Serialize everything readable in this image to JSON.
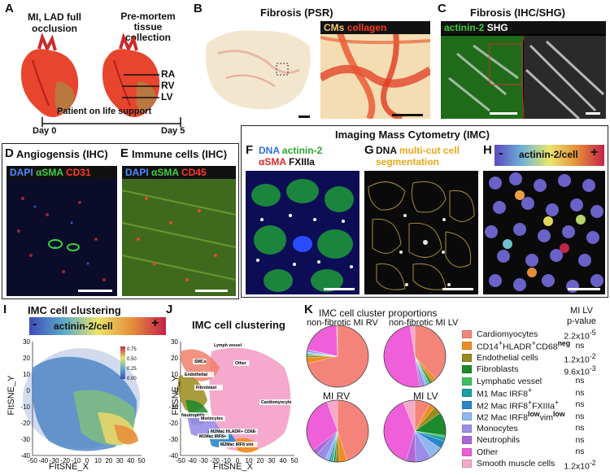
{
  "panels": {
    "A": {
      "letter": "A",
      "label1": "MI, LAD full",
      "label2": "occlusion",
      "label3": "Pre-mortem",
      "label4": "tissue",
      "label5": "collection",
      "ra": "RA",
      "rv": "RV",
      "lv": "LV",
      "support": "Patient on life support",
      "day0": "Day 0",
      "day5": "Day 5"
    },
    "B": {
      "letter": "B",
      "title": "Fibrosis (PSR)",
      "stain1": "CMs",
      "stain2": "collagen"
    },
    "C": {
      "letter": "C",
      "title": "Fibrosis (IHC/SHG)",
      "stain1": "actinin-2",
      "stain2": "SHG"
    },
    "D": {
      "letter": "D",
      "title": "Angiogensis (IHC)",
      "s1": "DAPI",
      "s2": "αSMA",
      "s3": "CD31"
    },
    "E": {
      "letter": "E",
      "title": "Immune cells (IHC)",
      "s1": "DAPI",
      "s2": "αSMA",
      "s3": "CD45"
    },
    "IMC": {
      "title": "Imaging Mass Cytometry (IMC)"
    },
    "F": {
      "letter": "F",
      "s1": "DNA",
      "s2": "actinin-2",
      "s3": "αSMA",
      "s4": "FXIIIa"
    },
    "G": {
      "letter": "G",
      "s1": "DNA",
      "s2": "multi-cut cell",
      "s3": "segmentation"
    },
    "H": {
      "letter": "H",
      "minus": "-",
      "label": "actinin-2/cell",
      "plus": "+"
    },
    "I": {
      "letter": "I",
      "title": "IMC cell clustering",
      "minus": "-",
      "label": "actinin-2/cell",
      "plus": "+",
      "xlabel": "FItSNE_X",
      "ylabel": "FItSNE_Y",
      "cbar_ticks": [
        "0.75",
        "0.50",
        "0.25",
        "0.00"
      ]
    },
    "J": {
      "letter": "J",
      "title": "IMC cell clustering",
      "xlabel": "FItSNE_X",
      "ylabel": "FItSNE_Y",
      "annotations": [
        "Lymph vessel",
        "SMCs",
        "Other",
        "Endothelial",
        "Fibroblast",
        "Neutrophils",
        "Monocytes",
        "M1Mac IRF8+",
        "M2Mac HLADR+ CD68-",
        "M2Mac IRF8 vim",
        "Cardiomyocyte"
      ]
    },
    "K": {
      "letter": "K",
      "title": "IMC cell cluster proportions",
      "pie_titles": [
        "non-fibrotic MI RV",
        "non-fibrotic MI LV",
        "MI RV",
        "MI LV"
      ],
      "pval_header1": "MI LV",
      "pval_header2": "p-value"
    }
  },
  "chart_data": [
    {
      "type": "scatter",
      "title": "IMC cell clustering",
      "xlabel": "FItSNE_X",
      "ylabel": "FItSNE_Y",
      "xticks": [
        "-50",
        "-40",
        "-30",
        "-20",
        "-10",
        "0",
        "10",
        "20",
        "30",
        "40",
        "50"
      ],
      "yticks": [
        "30",
        "20",
        "10",
        "0",
        "-10",
        "-20",
        "-30",
        "-40"
      ],
      "xlim": [
        -50,
        50
      ],
      "ylim": [
        -45,
        35
      ],
      "colorbar": {
        "label": "actinin-2/cell",
        "ticks": [
          0.75,
          0.5,
          0.25,
          0.0
        ]
      }
    },
    {
      "type": "scatter",
      "title": "IMC cell clustering",
      "xlabel": "FItSNE_X",
      "ylabel": "FItSNE_Y",
      "xticks": [
        "-50",
        "-40",
        "-30",
        "-20",
        "-10",
        "0",
        "10",
        "20",
        "30",
        "40",
        "50"
      ],
      "yticks": [
        "30",
        "20",
        "10",
        "0",
        "-10",
        "-20",
        "-30",
        "-40"
      ],
      "xlim": [
        -50,
        50
      ],
      "ylim": [
        -45,
        35
      ]
    },
    {
      "type": "pie",
      "title": "IMC cell cluster proportions",
      "categories": [
        "Cardiomyocytes",
        "CD14+HLADR+CD68neg",
        "Endothelial cells",
        "Fibroblasts",
        "Lymphatic vessel",
        "M1 Mac IRF8+",
        "M2 Mac IRF8+FXIIIa+",
        "M2 Mac IRF8low vimlow",
        "Monocytes",
        "Neutrophils",
        "Other",
        "Smooth muscle cells"
      ],
      "colors": [
        "#f4847a",
        "#f08c1f",
        "#9b8a1c",
        "#1d8a2b",
        "#3fbf5c",
        "#1aa0a0",
        "#2a86c8",
        "#8fb8ee",
        "#9a8de8",
        "#b066d8",
        "#ee5fd9",
        "#f6a9c9"
      ],
      "p_values": [
        "2.2x10-5",
        "ns",
        "1.2x10-2",
        "9.6x10-3",
        "ns",
        "ns",
        "ns",
        "ns",
        "ns",
        "ns",
        "ns",
        "1.2x10-2"
      ],
      "series": [
        {
          "name": "non-fibrotic MI RV",
          "values": [
            0.72,
            0.03,
            0.01,
            0.005,
            0.003,
            0.005,
            0.003,
            0.003,
            0.01,
            0.005,
            0.21,
            0.006
          ]
        },
        {
          "name": "non-fibrotic MI LV",
          "values": [
            0.38,
            0.02,
            0.01,
            0.01,
            0.005,
            0.005,
            0.005,
            0.01,
            0.02,
            0.01,
            0.5,
            0.025
          ]
        },
        {
          "name": "MI RV",
          "values": [
            0.45,
            0.04,
            0.02,
            0.01,
            0.005,
            0.01,
            0.01,
            0.02,
            0.05,
            0.03,
            0.3,
            0.055
          ]
        },
        {
          "name": "MI LV",
          "values": [
            0.08,
            0.03,
            0.04,
            0.12,
            0.01,
            0.02,
            0.04,
            0.07,
            0.08,
            0.05,
            0.39,
            0.06
          ]
        }
      ]
    }
  ]
}
